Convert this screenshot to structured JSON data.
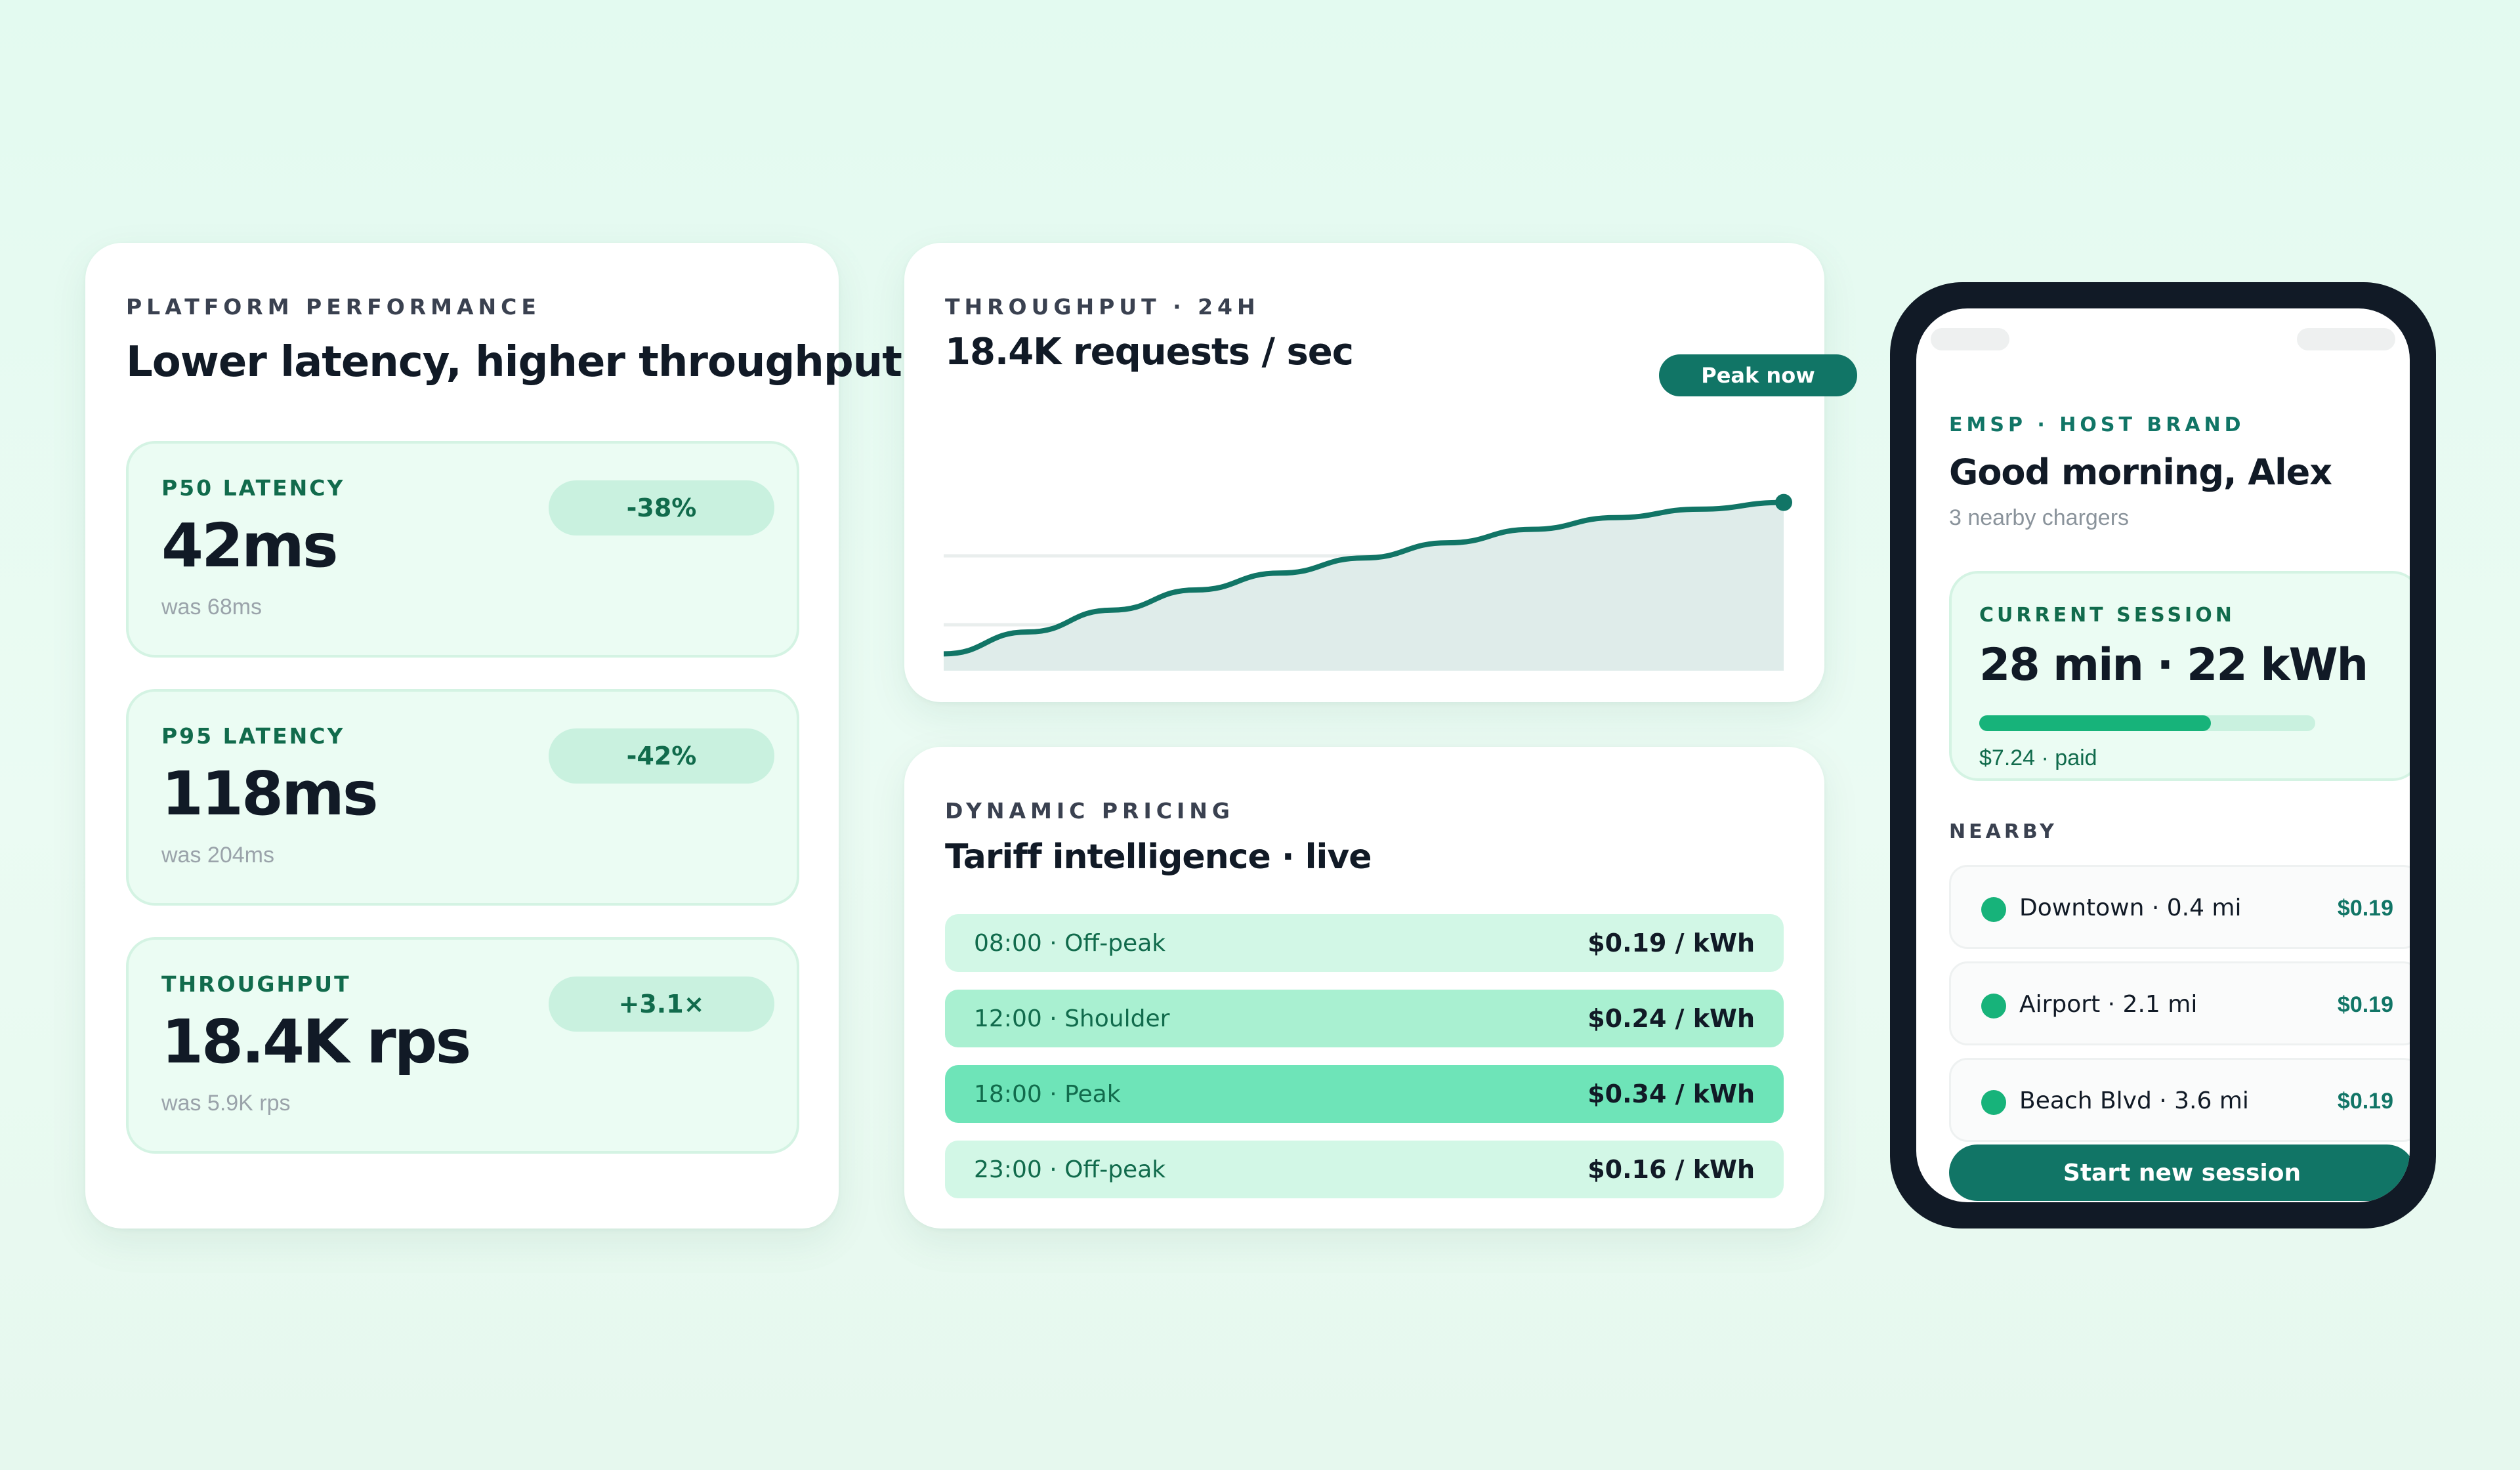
{
  "colors": {
    "accent": "#117566",
    "accent_bright": "#17b37a",
    "text_dark": "#111a26",
    "metric_bg": "#ebfcf3",
    "badge_bg": "#c9f1df"
  },
  "performance": {
    "eyebrow": "PLATFORM PERFORMANCE",
    "title": "Lower latency, higher throughput",
    "metrics": [
      {
        "label": "P50 LATENCY",
        "value": "42ms",
        "was": "was 68ms",
        "badge": "-38%"
      },
      {
        "label": "P95 LATENCY",
        "value": "118ms",
        "was": "was 204ms",
        "badge": "-42%"
      },
      {
        "label": "THROUGHPUT",
        "value": "18.4K rps",
        "was": "was 5.9K rps",
        "badge": "+3.1×"
      }
    ]
  },
  "throughput": {
    "eyebrow": "THROUGHPUT · 24H",
    "title": "18.4K requests / sec",
    "peak_label": "Peak now"
  },
  "chart_data": {
    "type": "area",
    "title": "18.4K requests / sec",
    "subtitle": "THROUGHPUT · 24H",
    "x": [
      0,
      1,
      2,
      3,
      4,
      5,
      6,
      7,
      8,
      9,
      10
    ],
    "values": [
      0.1,
      0.23,
      0.36,
      0.48,
      0.58,
      0.67,
      0.76,
      0.84,
      0.91,
      0.96,
      1.0
    ],
    "xlabel": "",
    "ylabel": "",
    "grid": true,
    "gridlines": 3,
    "annotation": "Peak now",
    "ylim": [
      0,
      1.1
    ]
  },
  "pricing": {
    "eyebrow": "DYNAMIC PRICING",
    "title": "Tariff intelligence · live",
    "rows": [
      {
        "label": "08:00 · Off-peak",
        "price": "$0.19 / kWh",
        "bg": "#d2f7e6"
      },
      {
        "label": "12:00 · Shoulder",
        "price": "$0.24 / kWh",
        "bg": "#a9f0d1"
      },
      {
        "label": "18:00 · Peak",
        "price": "$0.34 / kWh",
        "bg": "#6ee4b8"
      },
      {
        "label": "23:00 · Off-peak",
        "price": "$0.16 / kWh",
        "bg": "#d2f7e6"
      }
    ]
  },
  "phone": {
    "eyebrow": "EMSP · HOST BRAND",
    "greeting": "Good morning, Alex",
    "subtitle": "3 nearby chargers",
    "session": {
      "label": "CURRENT SESSION",
      "value": "28 min · 22 kWh",
      "progress_pct": 69,
      "paid": "$7.24 · paid"
    },
    "nearby_label": "NEARBY",
    "chargers": [
      {
        "name": "Downtown · 0.4 mi",
        "price": "$0.19"
      },
      {
        "name": "Airport · 2.1 mi",
        "price": "$0.19"
      },
      {
        "name": "Beach Blvd · 3.6 mi",
        "price": "$0.19"
      }
    ],
    "cta": "Start new session"
  }
}
